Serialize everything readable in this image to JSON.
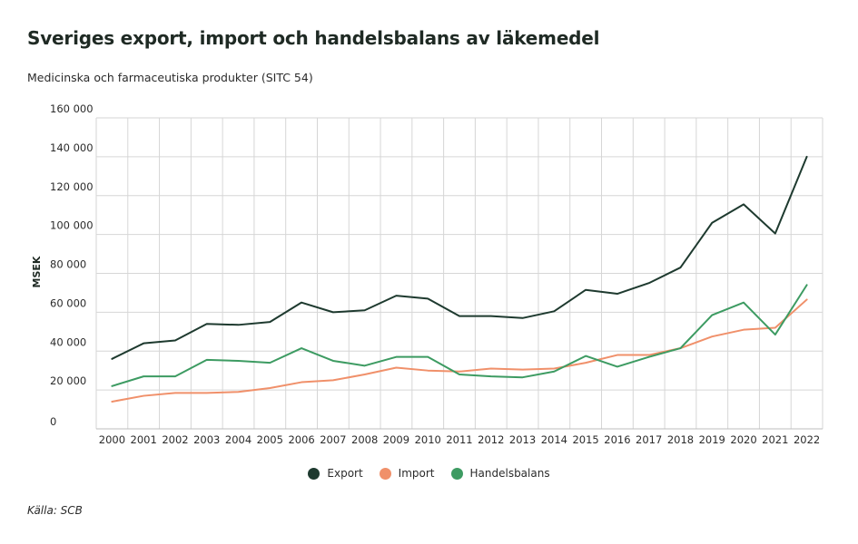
{
  "title": "Sveriges export, import och handelsbalans av läkemedel",
  "subtitle": "Medicinska och farmaceutiska produkter (SITC 54)",
  "source": "Källa: SCB",
  "colors": {
    "export": "#1e3a2f",
    "import": "#f0906a",
    "handelsbalans": "#3d9b62",
    "grid": "#d6d6d6"
  },
  "chart_data": {
    "type": "line",
    "title": "Sveriges export, import och handelsbalans av läkemedel",
    "subtitle": "Medicinska och farmaceutiska produkter (SITC 54)",
    "ylabel": "MSEK",
    "xlabel": "",
    "ylim": [
      0,
      160000
    ],
    "yticks": [
      0,
      20000,
      40000,
      60000,
      80000,
      100000,
      120000,
      140000,
      160000
    ],
    "ytick_labels": [
      "0",
      "20 000",
      "40 000",
      "60 000",
      "80 000",
      "100 000",
      "120 000",
      "140 000",
      "160 000"
    ],
    "categories": [
      "2000",
      "2001",
      "2002",
      "2003",
      "2004",
      "2005",
      "2006",
      "2007",
      "2008",
      "2009",
      "2010",
      "2011",
      "2012",
      "2013",
      "2014",
      "2015",
      "2016",
      "2017",
      "2018",
      "2019",
      "2020",
      "2021",
      "2022"
    ],
    "grid": true,
    "legend_position": "bottom-center",
    "series": [
      {
        "name": "Export",
        "color": "#1e3a2f",
        "values": [
          36000,
          44000,
          45500,
          54000,
          53500,
          55000,
          65000,
          60000,
          61000,
          68500,
          67000,
          58000,
          58000,
          57000,
          60500,
          71500,
          69500,
          75000,
          83000,
          106000,
          115500,
          100500,
          140000
        ]
      },
      {
        "name": "Import",
        "color": "#f0906a",
        "values": [
          14000,
          17000,
          18500,
          18500,
          19000,
          21000,
          24000,
          25000,
          28000,
          31500,
          30000,
          29500,
          31000,
          30500,
          31000,
          34000,
          38000,
          38000,
          41500,
          47500,
          51000,
          52000,
          66500
        ]
      },
      {
        "name": "Handelsbalans",
        "color": "#3d9b62",
        "values": [
          22000,
          27000,
          27000,
          35500,
          35000,
          34000,
          41500,
          35000,
          32500,
          37000,
          37000,
          28000,
          27000,
          26500,
          29500,
          37500,
          32000,
          37000,
          41500,
          58500,
          65000,
          48500,
          74000
        ]
      }
    ]
  }
}
